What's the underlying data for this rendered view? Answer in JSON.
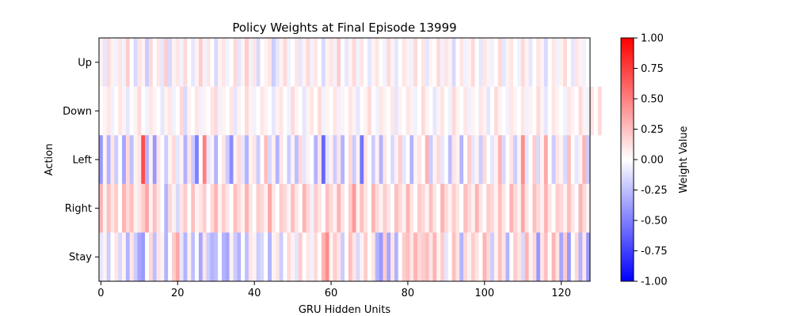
{
  "chart_data": {
    "type": "heatmap",
    "title": "Policy Weights at Final Episode 13999",
    "xlabel": "GRU Hidden Units",
    "ylabel": "Action",
    "rows": [
      "Up",
      "Down",
      "Left",
      "Right",
      "Stay"
    ],
    "n_columns": 128,
    "x_ticks": [
      0,
      20,
      40,
      60,
      80,
      100,
      120
    ],
    "colorbar": {
      "label": "Weight Value",
      "min": -1.0,
      "max": 1.0,
      "colormap": "bwr",
      "ticks": [
        "-1.00",
        "-0.75",
        "-0.50",
        "-0.25",
        "0.00",
        "0.25",
        "0.50",
        "0.75",
        "1.00"
      ]
    },
    "values": [
      [
        0.05,
        -0.1,
        0.15,
        0.05,
        -0.05,
        0.1,
        -0.05,
        0.2,
        0.0,
        -0.15,
        0.1,
        0.05,
        -0.2,
        0.15,
        0.0,
        0.1,
        -0.1,
        0.2,
        -0.15,
        0.05,
        0.1,
        -0.05,
        0.15,
        0.0,
        -0.1,
        0.05,
        0.2,
        -0.05,
        0.1,
        0.0,
        -0.15,
        0.05,
        0.1,
        -0.05,
        0.0,
        0.15,
        -0.1,
        0.05,
        0.2,
        -0.05,
        0.1,
        -0.15,
        0.0,
        0.05,
        0.1,
        -0.2,
        -0.1,
        0.05,
        0.15,
        -0.05,
        0.0,
        0.1,
        -0.1,
        0.05,
        0.15,
        -0.05,
        0.1,
        0.0,
        -0.15,
        0.05,
        0.1,
        -0.05,
        0.2,
        0.0,
        -0.1,
        0.05,
        0.15,
        -0.05,
        0.1,
        0.0,
        -0.1,
        0.05,
        0.1,
        0.0,
        -0.05,
        0.15,
        0.05,
        -0.1,
        0.0,
        0.1,
        0.05,
        -0.05,
        0.15,
        0.0,
        0.1,
        -0.1,
        0.05,
        0.0,
        0.15,
        -0.05,
        0.1,
        0.05,
        -0.15,
        0.0,
        0.1,
        -0.05,
        0.05,
        0.15,
        0.0,
        -0.1,
        0.1,
        0.05,
        -0.05,
        0.0,
        0.15,
        -0.1,
        0.05,
        0.1,
        0.0,
        -0.05,
        0.15,
        0.05,
        -0.1,
        0.0,
        0.1,
        0.05,
        -0.15,
        0.0,
        0.1,
        -0.05,
        0.05,
        0.15,
        0.0,
        -0.1,
        0.1,
        0.05,
        -0.05,
        0.0
      ],
      [
        0.0,
        0.05,
        0.1,
        -0.05,
        0.0,
        0.1,
        0.05,
        -0.1,
        0.0,
        0.05,
        0.15,
        0.0,
        -0.05,
        0.1,
        0.05,
        0.0,
        -0.1,
        0.05,
        0.1,
        -0.05,
        0.0,
        0.15,
        -0.15,
        0.05,
        0.0,
        0.1,
        -0.05,
        0.05,
        0.0,
        0.1,
        0.15,
        -0.05,
        0.05,
        0.0,
        0.1,
        -0.1,
        0.05,
        0.0,
        0.15,
        0.05,
        -0.05,
        0.0,
        0.1,
        0.05,
        0.0,
        -0.1,
        0.05,
        0.1,
        0.0,
        -0.05,
        0.15,
        0.05,
        0.0,
        -0.1,
        0.05,
        0.1,
        0.0,
        0.15,
        -0.05,
        0.05,
        0.0,
        0.1,
        -0.05,
        0.05,
        0.0,
        0.1,
        0.05,
        -0.1,
        0.0,
        0.05,
        0.15,
        0.0,
        -0.05,
        0.1,
        0.05,
        0.0,
        0.1,
        -0.1,
        0.05,
        0.0,
        0.1,
        0.05,
        -0.05,
        0.0,
        0.15,
        0.05,
        0.0,
        -0.1,
        0.05,
        0.1,
        0.0,
        -0.05,
        0.15,
        0.05,
        0.0,
        0.1,
        -0.05,
        0.05,
        0.0,
        0.1,
        0.05,
        -0.1,
        0.0,
        0.15,
        0.05,
        0.0,
        -0.05,
        0.1,
        0.05,
        0.0,
        0.1,
        -0.05,
        0.05,
        0.0,
        0.15,
        0.05,
        -0.1,
        0.0,
        0.1,
        0.05,
        0.0,
        -0.05,
        0.1,
        0.05,
        0.0,
        0.15,
        0.05,
        -0.05,
        0.1,
        0.0,
        0.15
      ],
      [
        -0.4,
        0.05,
        -0.3,
        0.1,
        -0.2,
        0.0,
        -0.35,
        0.15,
        -0.25,
        0.05,
        0.1,
        0.7,
        -0.3,
        0.05,
        -0.4,
        0.1,
        0.0,
        -0.2,
        0.05,
        0.15,
        -0.1,
        0.05,
        -0.3,
        0.1,
        -0.2,
        -0.5,
        0.0,
        0.5,
        -0.1,
        0.05,
        -0.3,
        0.0,
        0.1,
        -0.2,
        -0.45,
        0.05,
        0.15,
        -0.1,
        -0.3,
        0.05,
        0.1,
        -0.2,
        0.0,
        0.25,
        -0.15,
        0.05,
        -0.3,
        0.1,
        0.0,
        -0.2,
        0.05,
        -0.25,
        0.15,
        -0.1,
        0.05,
        0.0,
        -0.3,
        0.1,
        -0.6,
        -0.1,
        0.05,
        -0.2,
        0.1,
        -0.3,
        0.0,
        0.15,
        -0.2,
        0.05,
        -0.55,
        0.1,
        0.0,
        -0.2,
        0.05,
        -0.3,
        0.1,
        0.0,
        -0.15,
        0.05,
        0.2,
        -0.1,
        0.0,
        -0.3,
        0.05,
        0.1,
        0.0,
        0.3,
        -0.2,
        0.05,
        0.15,
        -0.1,
        0.0,
        -0.25,
        0.1,
        0.05,
        -0.3,
        0.0,
        0.2,
        -0.1,
        0.05,
        -0.2,
        0.15,
        0.0,
        -0.1,
        0.05,
        0.3,
        -0.15,
        0.0,
        0.1,
        -0.2,
        0.05,
        0.45,
        -0.1,
        0.0,
        0.2,
        -0.15,
        0.05,
        0.35,
        0.0,
        -0.2,
        0.1,
        0.05,
        -0.15,
        0.25,
        0.0,
        -0.1,
        0.05,
        0.3,
        -0.2
      ],
      [
        0.3,
        0.05,
        0.25,
        0.1,
        0.2,
        0.0,
        0.3,
        0.15,
        0.25,
        0.05,
        0.1,
        0.2,
        0.35,
        0.05,
        0.25,
        0.1,
        0.0,
        -0.3,
        0.15,
        0.05,
        -0.15,
        0.1,
        0.2,
        0.0,
        0.25,
        0.05,
        0.1,
        0.2,
        0.0,
        0.15,
        0.3,
        0.05,
        0.2,
        0.1,
        0.0,
        0.25,
        0.15,
        0.05,
        0.3,
        0.1,
        0.0,
        0.2,
        0.15,
        0.05,
        0.35,
        0.1,
        0.0,
        0.2,
        0.15,
        0.05,
        0.25,
        0.1,
        0.0,
        0.3,
        0.15,
        -0.05,
        0.2,
        0.1,
        0.0,
        0.25,
        0.15,
        0.05,
        0.3,
        0.1,
        0.0,
        0.2,
        0.4,
        0.05,
        0.25,
        0.1,
        0.0,
        0.3,
        0.15,
        0.05,
        0.2,
        0.1,
        0.0,
        0.25,
        0.15,
        0.05,
        0.3,
        0.1,
        0.0,
        0.2,
        0.15,
        0.05,
        0.25,
        0.1,
        0.0,
        0.3,
        0.15,
        0.05,
        0.2,
        0.1,
        0.0,
        0.25,
        0.15,
        0.05,
        0.3,
        0.1,
        0.0,
        0.2,
        0.15,
        0.05,
        0.25,
        0.1,
        0.0,
        0.3,
        0.15,
        0.05,
        0.35,
        0.1,
        0.0,
        0.25,
        0.15,
        0.05,
        0.3,
        0.1,
        0.0,
        0.2,
        0.15,
        0.05,
        0.25,
        0.1,
        0.0,
        0.3,
        0.15,
        0.05
      ],
      [
        -0.1,
        0.05,
        -0.2,
        0.0,
        0.1,
        -0.15,
        0.05,
        -0.3,
        0.1,
        -0.2,
        -0.35,
        -0.4,
        0.0,
        0.15,
        -0.25,
        0.1,
        0.05,
        -0.3,
        0.0,
        0.2,
        0.35,
        -0.1,
        -0.3,
        0.05,
        -0.25,
        0.0,
        -0.35,
        0.1,
        -0.2,
        -0.3,
        -0.25,
        0.0,
        -0.3,
        -0.35,
        0.05,
        -0.2,
        -0.3,
        0.0,
        -0.25,
        0.1,
        0.05,
        -0.2,
        -0.15,
        0.0,
        -0.3,
        0.05,
        0.1,
        -0.2,
        0.0,
        0.15,
        0.05,
        -0.1,
        0.2,
        0.0,
        0.1,
        -0.05,
        0.15,
        0.0,
        0.3,
        0.45,
        0.05,
        0.2,
        0.1,
        -0.2,
        0.0,
        0.25,
        0.1,
        -0.15,
        0.05,
        0.2,
        0.0,
        0.1,
        -0.3,
        -0.4,
        0.2,
        -0.35,
        0.1,
        -0.3,
        0.0,
        0.2,
        0.25,
        0.1,
        0.3,
        0.15,
        0.2,
        0.25,
        0.1,
        0.3,
        0.05,
        0.2,
        -0.1,
        0.0,
        0.25,
        0.1,
        -0.3,
        0.15,
        0.05,
        0.2,
        0.1,
        0.0,
        0.3,
        0.15,
        -0.2,
        0.05,
        0.25,
        0.1,
        -0.3,
        0.0,
        0.2,
        0.1,
        -0.15,
        0.3,
        0.05,
        0.15,
        -0.4,
        0.1,
        0.25,
        0.0,
        0.3,
        0.1,
        -0.35,
        0.2,
        -0.4,
        0.0,
        0.15,
        -0.3,
        0.1,
        -0.4
      ]
    ]
  }
}
